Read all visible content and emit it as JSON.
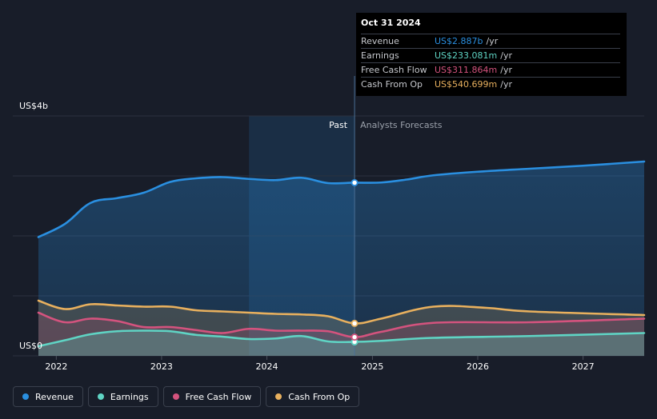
{
  "colors": {
    "background": "#181d29",
    "revenue": "#2a8fe0",
    "earnings": "#5fd4c4",
    "free_cash_flow": "#d4537e",
    "cash_from_op": "#e8b05e",
    "highlight_band": "#1d3c5c"
  },
  "chart_data": {
    "type": "area",
    "y_axis": {
      "top_label": "US$4b",
      "bottom_label": "US$0",
      "ylim": [
        0,
        4.0
      ],
      "unit": "US$ billions"
    },
    "x_axis": {
      "ticks": [
        "2022",
        "2023",
        "2024",
        "2025",
        "2026",
        "2027"
      ],
      "range": [
        "2021-10-31",
        "2027-08-01"
      ]
    },
    "divider": {
      "date": "2024-10-31",
      "past_label": "Past",
      "forecast_label": "Analysts Forecasts"
    },
    "series": [
      {
        "name": "Revenue",
        "key": "revenue",
        "x": [
          "2021-10-31",
          "2022-01-31",
          "2022-04-30",
          "2022-07-31",
          "2022-10-31",
          "2023-01-31",
          "2023-04-30",
          "2023-07-31",
          "2023-10-31",
          "2024-01-31",
          "2024-04-30",
          "2024-07-31",
          "2024-10-31",
          "2025-01-31",
          "2025-04-30",
          "2025-07-31",
          "2025-12-31",
          "2026-06-30",
          "2026-12-31",
          "2027-08-01"
        ],
        "values": [
          1.98,
          2.2,
          2.55,
          2.63,
          2.72,
          2.9,
          2.96,
          2.98,
          2.95,
          2.93,
          2.97,
          2.88,
          2.887,
          2.89,
          2.94,
          3.01,
          3.07,
          3.12,
          3.17,
          3.24
        ]
      },
      {
        "name": "Earnings",
        "key": "earnings",
        "x": [
          "2021-10-31",
          "2022-01-31",
          "2022-04-30",
          "2022-07-31",
          "2022-10-31",
          "2023-01-31",
          "2023-04-30",
          "2023-07-31",
          "2023-10-31",
          "2024-01-31",
          "2024-04-30",
          "2024-07-31",
          "2024-10-31",
          "2025-01-31",
          "2025-07-31",
          "2026-06-30",
          "2027-08-01"
        ],
        "values": [
          0.16,
          0.26,
          0.36,
          0.41,
          0.42,
          0.41,
          0.35,
          0.32,
          0.28,
          0.29,
          0.33,
          0.24,
          0.233,
          0.25,
          0.3,
          0.33,
          0.38
        ]
      },
      {
        "name": "Free Cash Flow",
        "key": "free_cash_flow",
        "x": [
          "2021-10-31",
          "2022-01-31",
          "2022-04-30",
          "2022-07-31",
          "2022-10-31",
          "2023-01-31",
          "2023-04-30",
          "2023-07-31",
          "2023-10-31",
          "2024-01-31",
          "2024-04-30",
          "2024-07-31",
          "2024-10-31",
          "2025-01-31",
          "2025-07-31",
          "2026-06-30",
          "2027-08-01"
        ],
        "values": [
          0.72,
          0.56,
          0.62,
          0.58,
          0.48,
          0.48,
          0.43,
          0.38,
          0.45,
          0.42,
          0.42,
          0.41,
          0.312,
          0.4,
          0.55,
          0.56,
          0.62
        ]
      },
      {
        "name": "Cash From Op",
        "key": "cash_from_op",
        "x": [
          "2021-10-31",
          "2022-01-31",
          "2022-04-30",
          "2022-07-31",
          "2022-10-31",
          "2023-01-31",
          "2023-04-30",
          "2023-07-31",
          "2023-10-31",
          "2024-01-31",
          "2024-04-30",
          "2024-07-31",
          "2024-10-31",
          "2025-01-31",
          "2025-07-31",
          "2026-01-31",
          "2026-06-30",
          "2027-08-01"
        ],
        "values": [
          0.92,
          0.78,
          0.86,
          0.84,
          0.82,
          0.82,
          0.76,
          0.74,
          0.72,
          0.7,
          0.69,
          0.66,
          0.541,
          0.62,
          0.82,
          0.8,
          0.74,
          0.68
        ]
      }
    ]
  },
  "tooltip": {
    "date": "Oct 31 2024",
    "rows": [
      {
        "label": "Revenue",
        "value": "US$2.887b",
        "unit": "/yr",
        "key": "revenue"
      },
      {
        "label": "Earnings",
        "value": "US$233.081m",
        "unit": "/yr",
        "key": "earnings"
      },
      {
        "label": "Free Cash Flow",
        "value": "US$311.864m",
        "unit": "/yr",
        "key": "free_cash_flow"
      },
      {
        "label": "Cash From Op",
        "value": "US$540.699m",
        "unit": "/yr",
        "key": "cash_from_op"
      }
    ]
  },
  "legend": [
    {
      "label": "Revenue",
      "key": "revenue"
    },
    {
      "label": "Earnings",
      "key": "earnings"
    },
    {
      "label": "Free Cash Flow",
      "key": "free_cash_flow"
    },
    {
      "label": "Cash From Op",
      "key": "cash_from_op"
    }
  ]
}
